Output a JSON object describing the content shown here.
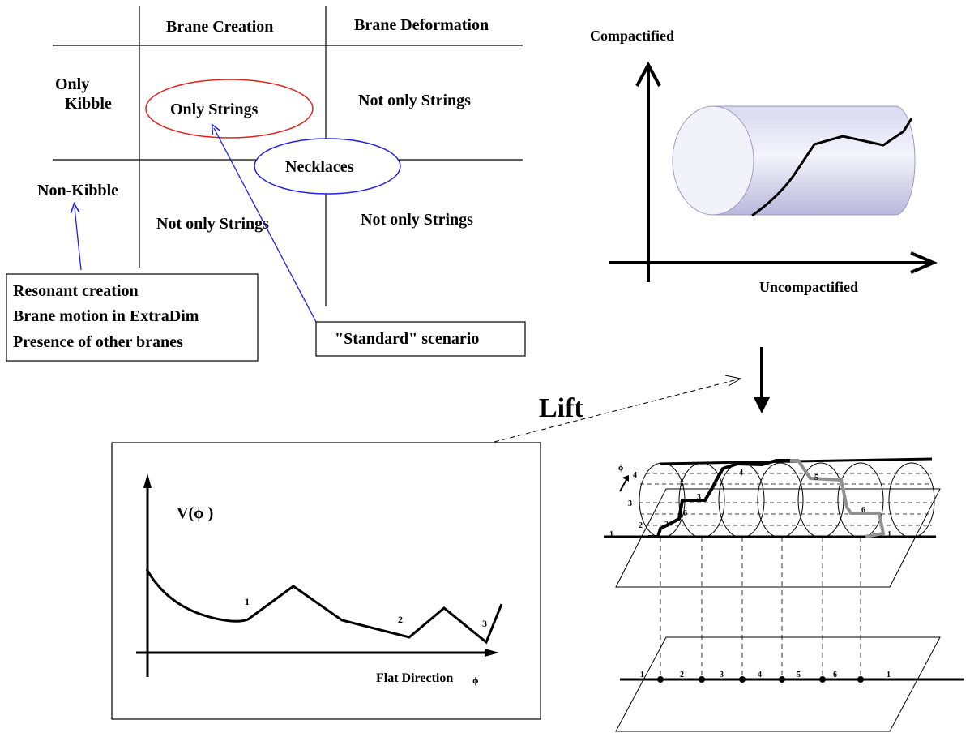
{
  "table": {
    "col_headers": [
      "Brane Creation",
      "Brane Deformation"
    ],
    "row_headers": [
      "Only\nKibble",
      "Non-Kibble"
    ],
    "cells": {
      "r1c1": "Only Strings",
      "r1c2": "Not only Strings",
      "r2c1": "Not only Strings",
      "r2c2": "Not only Strings"
    },
    "necklaces": "Necklaces"
  },
  "callouts": {
    "non_kibble_box": [
      "Resonant creation",
      "Brane motion in ExtraDim",
      "Presence of other branes"
    ],
    "standard_box": "\"Standard\" scenario"
  },
  "cylinder_plot": {
    "y_label": "Compactified",
    "x_label": "Uncompactified"
  },
  "lift_label": "Lift",
  "potential_plot": {
    "y_label": "V(ϕ )",
    "x_label": "Flat Direction",
    "x_symbol": "ϕ",
    "minima_labels": [
      "1",
      "2",
      "3"
    ]
  },
  "lift_diagram": {
    "phi_label": "ϕ",
    "side_numbers": [
      "4",
      "3",
      "2",
      "1"
    ],
    "segment_numbers": [
      "2",
      "3",
      "6",
      "4",
      "5",
      "6",
      "5",
      "1"
    ],
    "bottom_numbers": [
      "1",
      "2",
      "3",
      "4",
      "5",
      "6",
      "1"
    ]
  },
  "colors": {
    "ellipse_only_strings": "#e02020",
    "ellipse_necklaces": "#2020e0",
    "arrow_blue": "#2020e0",
    "cylinder_fill": "#c8c8e8",
    "gray_path": "#909090"
  }
}
